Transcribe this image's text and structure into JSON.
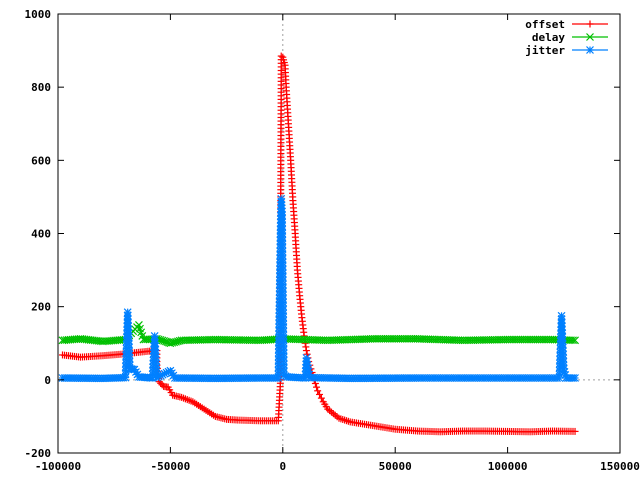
{
  "chart_data": {
    "type": "line",
    "title": "",
    "xlabel": "",
    "ylabel": "",
    "xlim": [
      -100000,
      150000
    ],
    "ylim": [
      -200,
      1000
    ],
    "x_ticks": [
      -100000,
      -50000,
      0,
      50000,
      100000,
      150000
    ],
    "x_tick_labels": [
      "-100000",
      "-50000",
      "0",
      "50000",
      "100000",
      "150000"
    ],
    "y_ticks": [
      -200,
      0,
      200,
      400,
      600,
      800,
      1000
    ],
    "y_tick_labels": [
      "-200",
      "0",
      "200",
      "400",
      "600",
      "800",
      "1000"
    ],
    "zero_axes": true,
    "grid": false,
    "legend_position": "top-right",
    "series": [
      {
        "name": "offset",
        "color": "#ff0000",
        "marker": "plus",
        "points": [
          [
            -98000,
            68
          ],
          [
            -90000,
            62
          ],
          [
            -80000,
            66
          ],
          [
            -72000,
            70
          ],
          [
            -66000,
            74
          ],
          [
            -60000,
            78
          ],
          [
            -56000,
            80
          ],
          [
            -56000,
            40
          ],
          [
            -55000,
            -5
          ],
          [
            -53000,
            -18
          ],
          [
            -51000,
            -20
          ],
          [
            -49000,
            -42
          ],
          [
            -45000,
            -48
          ],
          [
            -40000,
            -60
          ],
          [
            -35000,
            -80
          ],
          [
            -30000,
            -100
          ],
          [
            -25000,
            -108
          ],
          [
            -20000,
            -110
          ],
          [
            -10000,
            -112
          ],
          [
            -2000,
            -112
          ],
          [
            -1000,
            0
          ],
          [
            -900,
            500
          ],
          [
            -700,
            885
          ],
          [
            0,
            882
          ],
          [
            1000,
            860
          ],
          [
            1500,
            800
          ],
          [
            2500,
            700
          ],
          [
            3500,
            600
          ],
          [
            4500,
            490
          ],
          [
            5500,
            400
          ],
          [
            6500,
            300
          ],
          [
            7500,
            230
          ],
          [
            8500,
            170
          ],
          [
            9500,
            120
          ],
          [
            10500,
            80
          ],
          [
            11500,
            50
          ],
          [
            12500,
            30
          ],
          [
            14000,
            0
          ],
          [
            15500,
            -30
          ],
          [
            18000,
            -60
          ],
          [
            20000,
            -80
          ],
          [
            25000,
            -105
          ],
          [
            30000,
            -115
          ],
          [
            40000,
            -125
          ],
          [
            50000,
            -135
          ],
          [
            60000,
            -140
          ],
          [
            70000,
            -142
          ],
          [
            80000,
            -140
          ],
          [
            90000,
            -140
          ],
          [
            100000,
            -141
          ],
          [
            110000,
            -142
          ],
          [
            120000,
            -140
          ],
          [
            130000,
            -141
          ]
        ]
      },
      {
        "name": "delay",
        "color": "#00c000",
        "marker": "cross",
        "points": [
          [
            -98000,
            108
          ],
          [
            -90000,
            112
          ],
          [
            -80000,
            105
          ],
          [
            -70000,
            110
          ],
          [
            -64000,
            150
          ],
          [
            -62000,
            110
          ],
          [
            -56000,
            112
          ],
          [
            -52000,
            105
          ],
          [
            -50000,
            100
          ],
          [
            -45000,
            108
          ],
          [
            -30000,
            110
          ],
          [
            -10000,
            108
          ],
          [
            0,
            112
          ],
          [
            20000,
            108
          ],
          [
            40000,
            112
          ],
          [
            60000,
            112
          ],
          [
            80000,
            108
          ],
          [
            100000,
            110
          ],
          [
            120000,
            110
          ],
          [
            130000,
            108
          ]
        ]
      },
      {
        "name": "jitter",
        "color": "#0080ff",
        "marker": "star",
        "points": [
          [
            -98000,
            5
          ],
          [
            -80000,
            4
          ],
          [
            -70000,
            6
          ],
          [
            -69000,
            185
          ],
          [
            -68000,
            30
          ],
          [
            -66000,
            28
          ],
          [
            -64000,
            8
          ],
          [
            -60000,
            6
          ],
          [
            -58000,
            5
          ],
          [
            -57000,
            120
          ],
          [
            -56000,
            6
          ],
          [
            -50000,
            25
          ],
          [
            -48000,
            5
          ],
          [
            -30000,
            4
          ],
          [
            -10000,
            5
          ],
          [
            -2000,
            5
          ],
          [
            -1000,
            420
          ],
          [
            -700,
            495
          ],
          [
            -300,
            460
          ],
          [
            500,
            12
          ],
          [
            2000,
            8
          ],
          [
            10000,
            5
          ],
          [
            10500,
            60
          ],
          [
            11000,
            40
          ],
          [
            12000,
            6
          ],
          [
            30000,
            4
          ],
          [
            60000,
            5
          ],
          [
            90000,
            5
          ],
          [
            123000,
            5
          ],
          [
            124000,
            175
          ],
          [
            125000,
            30
          ],
          [
            126000,
            5
          ],
          [
            130000,
            5
          ]
        ]
      }
    ]
  }
}
